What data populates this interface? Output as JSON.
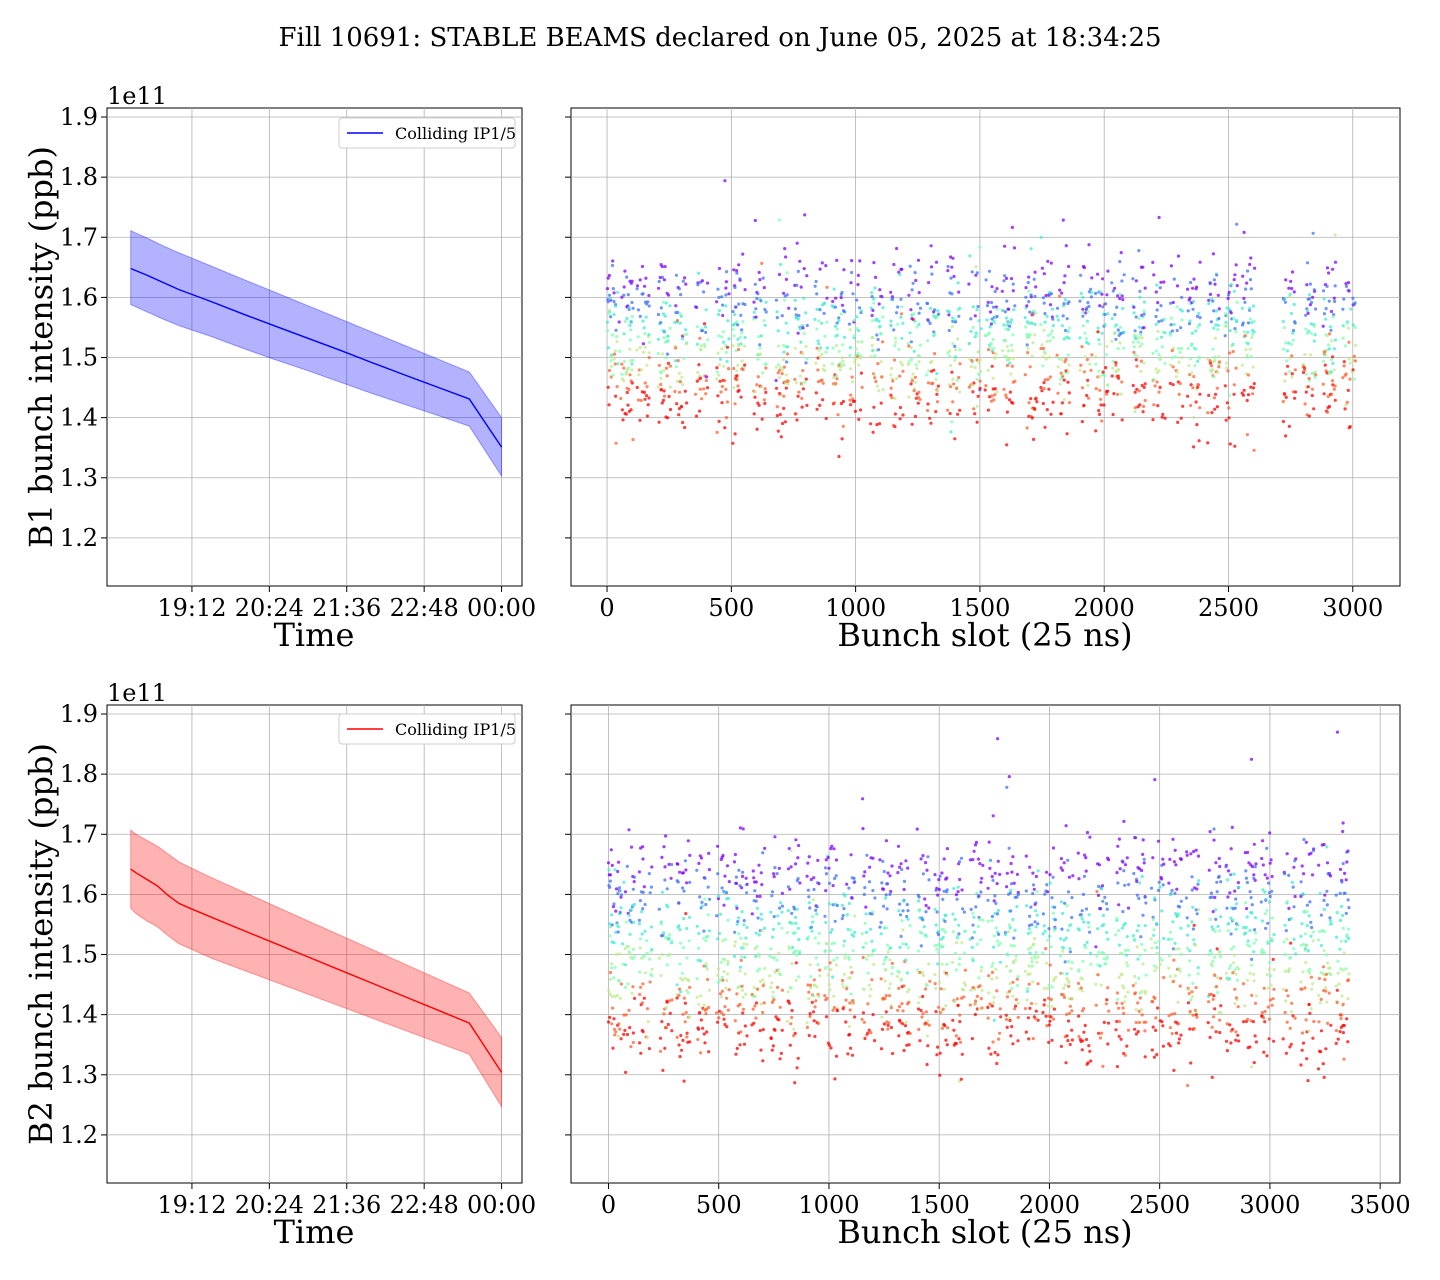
{
  "figure": {
    "title": "Fill 10691: STABLE BEAMS declared on June 05, 2025 at 18:34:25"
  },
  "chart_data": [
    {
      "type": "area",
      "panel": "b1-time",
      "title": "",
      "xlabel": "Time",
      "ylabel": "B1 bunch intensity (ppb)",
      "y_exponent_label": "1e11",
      "x_ticks": [
        "19:12",
        "20:24",
        "21:36",
        "22:48",
        "00:00"
      ],
      "x_tick_minutes": [
        72,
        144,
        216,
        288,
        360
      ],
      "xlim_minutes": [
        -7,
        379
      ],
      "y_ticks": [
        "1.2",
        "1.3",
        "1.4",
        "1.5",
        "1.6",
        "1.7",
        "1.8",
        "1.9"
      ],
      "ylim": [
        1.12,
        1.915
      ],
      "legend": {
        "label": "Colliding IP1/5",
        "placement": "top-right"
      },
      "series": [
        {
          "name": "Colliding IP1/5",
          "color": "#0000ff",
          "band_color": "#0000ff",
          "x_minutes": [
            15,
            30,
            45,
            60,
            75,
            90,
            120,
            150,
            180,
            210,
            240,
            270,
            300,
            330,
            360
          ],
          "mean": [
            1.648,
            1.637,
            1.625,
            1.613,
            1.603,
            1.593,
            1.572,
            1.552,
            1.532,
            1.512,
            1.491,
            1.471,
            1.451,
            1.431,
            1.351
          ],
          "upper": [
            1.711,
            1.699,
            1.686,
            1.674,
            1.663,
            1.652,
            1.63,
            1.608,
            1.586,
            1.564,
            1.542,
            1.52,
            1.498,
            1.476,
            1.4
          ],
          "lower": [
            1.588,
            1.576,
            1.564,
            1.553,
            1.544,
            1.535,
            1.515,
            1.496,
            1.478,
            1.459,
            1.44,
            1.422,
            1.404,
            1.386,
            1.303
          ]
        }
      ]
    },
    {
      "type": "scatter",
      "panel": "b1-slot",
      "title": "",
      "xlabel": "Bunch slot (25 ns)",
      "ylabel": "",
      "x_ticks": [
        "0",
        "500",
        "1000",
        "1500",
        "2000",
        "2500",
        "3000"
      ],
      "x_tick_values": [
        0,
        500,
        1000,
        1500,
        2000,
        2500,
        3000
      ],
      "xlim": [
        -145,
        3190
      ],
      "ylim": [
        1.12,
        1.915
      ],
      "colormap": "rainbow",
      "colormap_colors": [
        "#8000ff",
        "#3d73f8",
        "#00b5eb",
        "#40ecd4",
        "#80ffb4",
        "#c0eb8c",
        "#ffb360",
        "#ff6030",
        "#ff0000"
      ],
      "point_range": [
        1.22,
        1.88
      ],
      "group_starts": [
        0,
        55,
        120,
        205,
        270,
        355,
        440,
        505,
        590,
        680,
        755,
        835,
        905,
        975,
        1060,
        1140,
        1210,
        1285,
        1370,
        1455,
        1520,
        1590,
        1680,
        1745,
        1810,
        1900,
        1965,
        2030,
        2115,
        2195,
        2265,
        2335,
        2415,
        2485,
        2555,
        2720,
        2800,
        2880,
        2960
      ],
      "group_width": 52,
      "x_max": 3040,
      "level_count": 7,
      "level_top": 1.62,
      "level_bottom": 1.43,
      "spread": 0.055
    },
    {
      "type": "area",
      "panel": "b2-time",
      "title": "",
      "xlabel": "Time",
      "ylabel": "B2 bunch intensity (ppb)",
      "y_exponent_label": "1e11",
      "x_ticks": [
        "19:12",
        "20:24",
        "21:36",
        "22:48",
        "00:00"
      ],
      "x_tick_minutes": [
        72,
        144,
        216,
        288,
        360
      ],
      "xlim_minutes": [
        -7,
        379
      ],
      "y_ticks": [
        "1.2",
        "1.3",
        "1.4",
        "1.5",
        "1.6",
        "1.7",
        "1.8",
        "1.9"
      ],
      "ylim": [
        1.12,
        1.915
      ],
      "legend": {
        "label": "Colliding IP1/5",
        "placement": "top-right"
      },
      "series": [
        {
          "name": "Colliding IP1/5",
          "color": "#ff0000",
          "band_color": "#ff0000",
          "x_minutes": [
            15,
            20,
            30,
            40,
            50,
            60,
            70,
            90,
            120,
            150,
            180,
            210,
            240,
            270,
            300,
            330,
            360
          ],
          "mean": [
            1.642,
            1.636,
            1.625,
            1.614,
            1.598,
            1.585,
            1.577,
            1.562,
            1.54,
            1.518,
            1.496,
            1.474,
            1.452,
            1.43,
            1.408,
            1.386,
            1.304
          ],
          "upper": [
            1.707,
            1.7,
            1.69,
            1.68,
            1.667,
            1.654,
            1.645,
            1.628,
            1.604,
            1.58,
            1.556,
            1.532,
            1.508,
            1.484,
            1.46,
            1.436,
            1.362
          ],
          "lower": [
            1.577,
            1.568,
            1.556,
            1.546,
            1.531,
            1.518,
            1.51,
            1.494,
            1.474,
            1.454,
            1.434,
            1.414,
            1.394,
            1.374,
            1.354,
            1.334,
            1.247
          ]
        }
      ]
    },
    {
      "type": "scatter",
      "panel": "b2-slot",
      "title": "",
      "xlabel": "Bunch slot (25 ns)",
      "ylabel": "",
      "x_ticks": [
        "0",
        "500",
        "1000",
        "1500",
        "2000",
        "2500",
        "3000",
        "3500"
      ],
      "x_tick_values": [
        0,
        500,
        1000,
        1500,
        2000,
        2500,
        3000,
        3500
      ],
      "xlim": [
        -170,
        3590
      ],
      "ylim": [
        1.12,
        1.915
      ],
      "colormap": "rainbow",
      "colormap_colors": [
        "#8000ff",
        "#3d73f8",
        "#00b5eb",
        "#40ecd4",
        "#80ffb4",
        "#c0eb8c",
        "#ffb360",
        "#ff6030",
        "#ff0000"
      ],
      "point_range": [
        1.15,
        1.87
      ],
      "group_starts": [
        0,
        60,
        140,
        230,
        310,
        400,
        490,
        570,
        650,
        730,
        810,
        900,
        980,
        1060,
        1150,
        1230,
        1310,
        1400,
        1480,
        1560,
        1640,
        1720,
        1800,
        1890,
        1970,
        2050,
        2130,
        2210,
        2300,
        2380,
        2460,
        2540,
        2620,
        2720,
        2800,
        2880,
        2960,
        3060,
        3140,
        3220,
        3300
      ],
      "group_width": 60,
      "x_max": 3420,
      "level_count": 7,
      "level_top": 1.64,
      "level_bottom": 1.37,
      "spread": 0.06
    }
  ]
}
